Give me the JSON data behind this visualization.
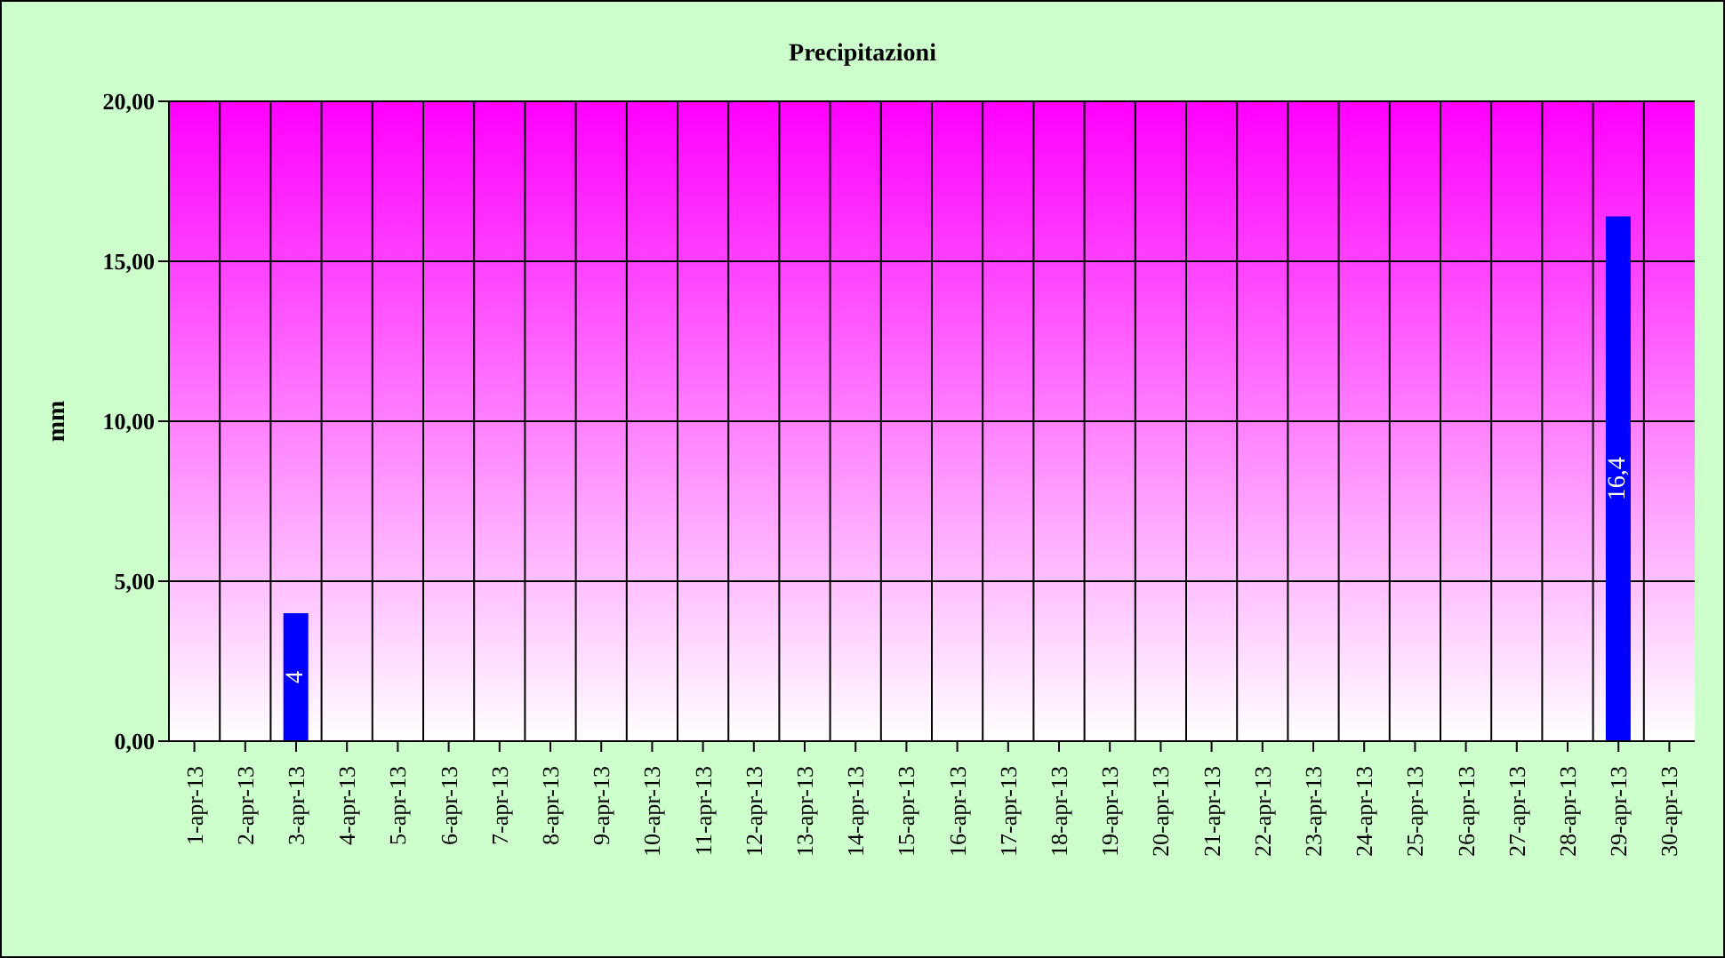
{
  "chart_data": {
    "type": "bar",
    "title": "Precipitazioni",
    "ylabel": "mm",
    "categories": [
      "1-apr-13",
      "2-apr-13",
      "3-apr-13",
      "4-apr-13",
      "5-apr-13",
      "6-apr-13",
      "7-apr-13",
      "8-apr-13",
      "9-apr-13",
      "10-apr-13",
      "11-apr-13",
      "12-apr-13",
      "13-apr-13",
      "14-apr-13",
      "15-apr-13",
      "16-apr-13",
      "17-apr-13",
      "18-apr-13",
      "19-apr-13",
      "20-apr-13",
      "21-apr-13",
      "22-apr-13",
      "23-apr-13",
      "24-apr-13",
      "25-apr-13",
      "26-apr-13",
      "27-apr-13",
      "28-apr-13",
      "29-apr-13",
      "30-apr-13"
    ],
    "values": [
      0,
      0,
      4,
      0,
      0,
      0,
      0,
      0,
      0,
      0,
      0,
      0,
      0,
      0,
      0,
      0,
      0,
      0,
      0,
      0,
      0,
      0,
      0,
      0,
      0,
      0,
      0,
      0,
      16.4,
      0
    ],
    "value_labels": [
      null,
      null,
      "4",
      null,
      null,
      null,
      null,
      null,
      null,
      null,
      null,
      null,
      null,
      null,
      null,
      null,
      null,
      null,
      null,
      null,
      null,
      null,
      null,
      null,
      null,
      null,
      null,
      null,
      "16,4",
      null
    ],
    "color": "#0000ff",
    "ylim": [
      0,
      20
    ],
    "yticks": [
      {
        "value": 0,
        "label": "0,00"
      },
      {
        "value": 5,
        "label": "5,00"
      },
      {
        "value": 10,
        "label": "10,00"
      },
      {
        "value": 15,
        "label": "15,00"
      },
      {
        "value": 20,
        "label": "20,00"
      }
    ],
    "grid": true
  }
}
